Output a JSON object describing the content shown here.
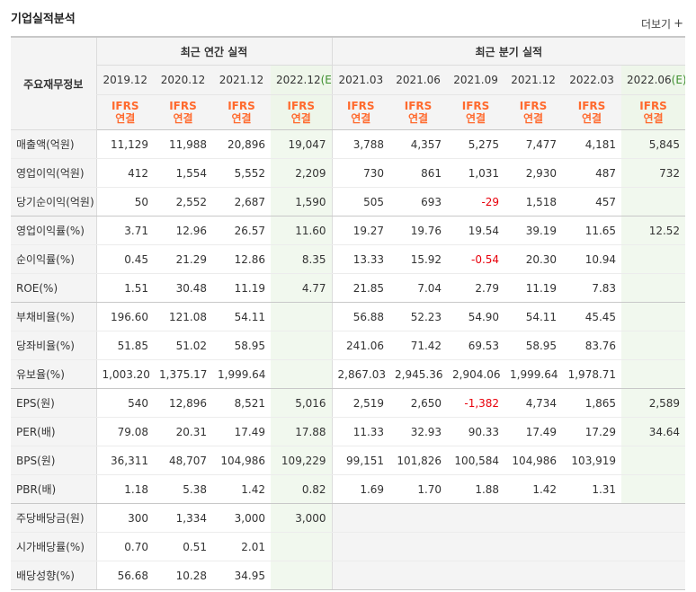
{
  "header": {
    "title": "기업실적분석",
    "more_label": "더보기",
    "more_icon": "plus-icon"
  },
  "table": {
    "label_header": "주요재무정보",
    "annual_group": "최근 연간 실적",
    "quarter_group": "최근 분기 실적",
    "annual_periods": [
      "2019.12",
      "2020.12",
      "2021.12",
      "2022.12"
    ],
    "annual_est_suffix": "(E)",
    "quarter_periods": [
      "2021.03",
      "2021.06",
      "2021.09",
      "2021.12",
      "2022.03",
      "2022.06"
    ],
    "quarter_est_suffix": "(E)",
    "ifrs_line1": "IFRS",
    "ifrs_line2": "연결",
    "rows": [
      {
        "label": "매출액(억원)",
        "values": [
          "11,129",
          "11,988",
          "20,896",
          "19,047",
          "3,788",
          "4,357",
          "5,275",
          "7,477",
          "4,181",
          "5,845"
        ]
      },
      {
        "label": "영업이익(억원)",
        "values": [
          "412",
          "1,554",
          "5,552",
          "2,209",
          "730",
          "861",
          "1,031",
          "2,930",
          "487",
          "732"
        ]
      },
      {
        "label": "당기순이익(억원)",
        "values": [
          "50",
          "2,552",
          "2,687",
          "1,590",
          "505",
          "693",
          "-29",
          "1,518",
          "457",
          ""
        ]
      },
      {
        "label": "영업이익률(%)",
        "values": [
          "3.71",
          "12.96",
          "26.57",
          "11.60",
          "19.27",
          "19.76",
          "19.54",
          "39.19",
          "11.65",
          "12.52"
        ]
      },
      {
        "label": "순이익률(%)",
        "values": [
          "0.45",
          "21.29",
          "12.86",
          "8.35",
          "13.33",
          "15.92",
          "-0.54",
          "20.30",
          "10.94",
          ""
        ]
      },
      {
        "label": "ROE(%)",
        "values": [
          "1.51",
          "30.48",
          "11.19",
          "4.77",
          "21.85",
          "7.04",
          "2.79",
          "11.19",
          "7.83",
          ""
        ]
      },
      {
        "label": "부채비율(%)",
        "values": [
          "196.60",
          "121.08",
          "54.11",
          "",
          "56.88",
          "52.23",
          "54.90",
          "54.11",
          "45.45",
          ""
        ]
      },
      {
        "label": "당좌비율(%)",
        "values": [
          "51.85",
          "51.02",
          "58.95",
          "",
          "241.06",
          "71.42",
          "69.53",
          "58.95",
          "83.76",
          ""
        ]
      },
      {
        "label": "유보율(%)",
        "values": [
          "1,003.20",
          "1,375.17",
          "1,999.64",
          "",
          "2,867.03",
          "2,945.36",
          "2,904.06",
          "1,999.64",
          "1,978.71",
          ""
        ]
      },
      {
        "label": "EPS(원)",
        "values": [
          "540",
          "12,896",
          "8,521",
          "5,016",
          "2,519",
          "2,650",
          "-1,382",
          "4,734",
          "1,865",
          "2,589"
        ]
      },
      {
        "label": "PER(배)",
        "values": [
          "79.08",
          "20.31",
          "17.49",
          "17.88",
          "11.33",
          "32.93",
          "90.33",
          "17.49",
          "17.29",
          "34.64"
        ]
      },
      {
        "label": "BPS(원)",
        "values": [
          "36,311",
          "48,707",
          "104,986",
          "109,229",
          "99,151",
          "101,826",
          "100,584",
          "104,986",
          "103,919",
          ""
        ]
      },
      {
        "label": "PBR(배)",
        "values": [
          "1.18",
          "5.38",
          "1.42",
          "0.82",
          "1.69",
          "1.70",
          "1.88",
          "1.42",
          "1.31",
          ""
        ]
      },
      {
        "label": "주당배당금(원)",
        "values": [
          "300",
          "1,334",
          "3,000",
          "3,000",
          "",
          "",
          "",
          "",
          "",
          ""
        ]
      },
      {
        "label": "시가배당률(%)",
        "values": [
          "0.70",
          "0.51",
          "2.01",
          "",
          "",
          "",
          "",
          "",
          "",
          ""
        ]
      },
      {
        "label": "배당성향(%)",
        "values": [
          "56.68",
          "10.28",
          "34.95",
          "",
          "",
          "",
          "",
          "",
          "",
          ""
        ]
      }
    ]
  },
  "colors": {
    "ifrs": "#ff6a2e",
    "negative": "#e8000b",
    "estimate_bg": "#f1f8ee",
    "estimate_text": "#3d8f2e"
  }
}
